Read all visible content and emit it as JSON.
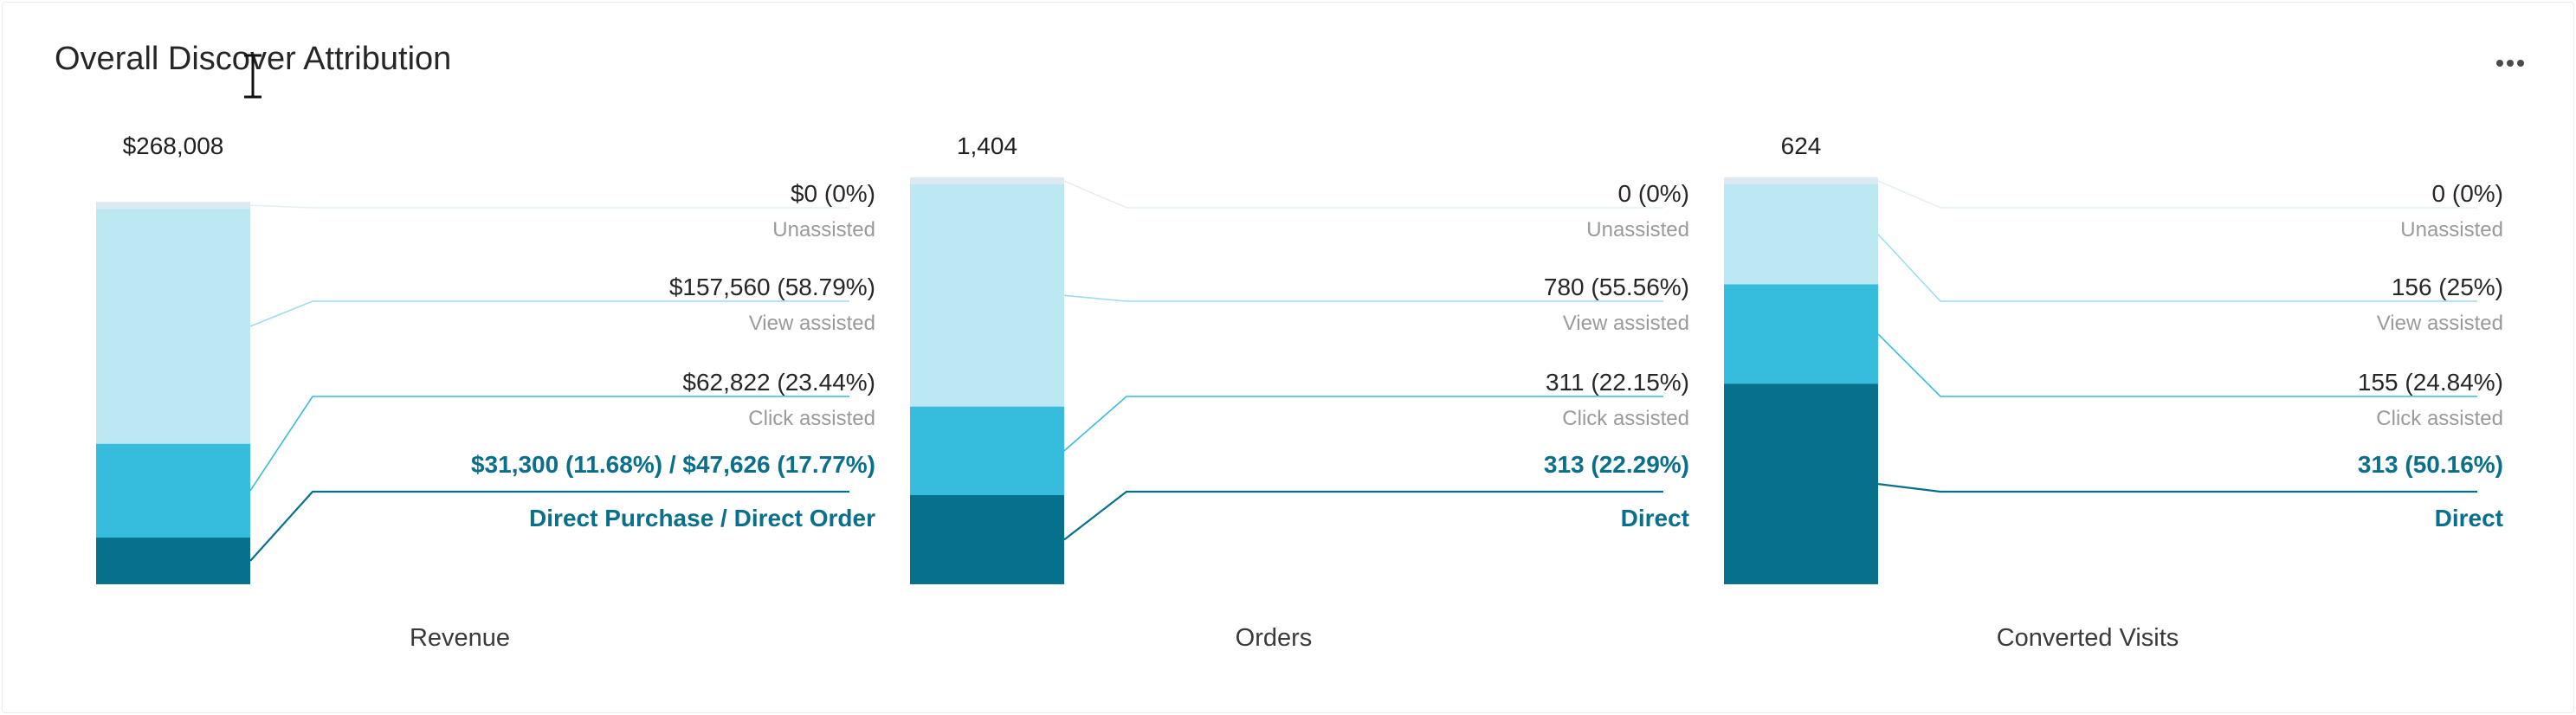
{
  "card": {
    "title": "Overall Discover Attribution",
    "more_icon": "more-horizontal-icon"
  },
  "colors": {
    "unassisted": "#dde9f2",
    "view_assisted": "#bce8f4",
    "click_assisted": "#36bcdc",
    "direct": "#06708d",
    "direct_text": "#0a6f8a"
  },
  "chart_data": [
    {
      "type": "bar",
      "stacked": true,
      "name": "Revenue",
      "total_label": "$268,008",
      "total": 268008,
      "segments": [
        {
          "category": "Unassisted",
          "value": 0,
          "label": "$0 (0%)"
        },
        {
          "category": "View assisted",
          "value": 157560,
          "label": "$157,560 (58.79%)"
        },
        {
          "category": "Click assisted",
          "value": 62822,
          "label": "$62,822 (23.44%)"
        },
        {
          "category": "Direct Purchase / Direct Order",
          "value": 31300,
          "label": "$31,300 (11.68%) / $47,626 (17.77%)",
          "direct": true
        }
      ]
    },
    {
      "type": "bar",
      "stacked": true,
      "name": "Orders",
      "total_label": "1,404",
      "total": 1404,
      "segments": [
        {
          "category": "Unassisted",
          "value": 0,
          "label": "0 (0%)"
        },
        {
          "category": "View assisted",
          "value": 780,
          "label": "780 (55.56%)"
        },
        {
          "category": "Click assisted",
          "value": 311,
          "label": "311 (22.15%)"
        },
        {
          "category": "Direct",
          "value": 313,
          "label": "313 (22.29%)",
          "direct": true
        }
      ]
    },
    {
      "type": "bar",
      "stacked": true,
      "name": "Converted Visits",
      "total_label": "624",
      "total": 624,
      "segments": [
        {
          "category": "Unassisted",
          "value": 0,
          "label": "0 (0%)"
        },
        {
          "category": "View assisted",
          "value": 156,
          "label": "156 (25%)"
        },
        {
          "category": "Click assisted",
          "value": 155,
          "label": "155 (24.84%)"
        },
        {
          "category": "Direct",
          "value": 313,
          "label": "313 (50.16%)",
          "direct": true
        }
      ]
    }
  ]
}
